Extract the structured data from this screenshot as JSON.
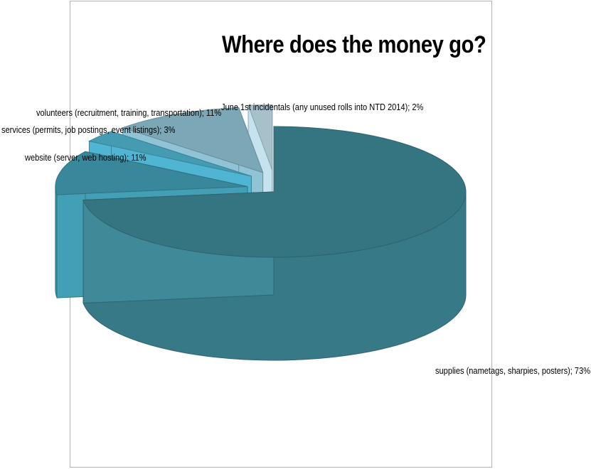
{
  "chart_data": {
    "type": "pie",
    "style": "3d-exploded",
    "title": "Where does the money go?",
    "slices": [
      {
        "label": "supplies (nametags, sharpies, posters)",
        "value": 73,
        "color": "#3a7f8d"
      },
      {
        "label": "website (server, web hosting)",
        "value": 11,
        "color": "#3e93a8"
      },
      {
        "label": "services (permits, job postings,  event listings)",
        "value": 3,
        "color": "#4aa8c2"
      },
      {
        "label": "volunteers (recruitment, training, transportation)",
        "value": 11,
        "color": "#86b5c6"
      },
      {
        "label": "June 1st incidentals (any unused rolls into NTD 2014)",
        "value": 2,
        "color": "#b6d2dc"
      }
    ],
    "label_format": "{label}; {value}%"
  },
  "labels": {
    "supplies": "supplies (nametags, sharpies, posters); 73%",
    "website": "website (server, web hosting); 11%",
    "services": "services (permits, job postings,  event listings); 3%",
    "volunteers": "volunteers (recruitment, training, transportation); 11%",
    "incidentals": "June 1st incidentals (any unused rolls into NTD 2014); 2%"
  }
}
